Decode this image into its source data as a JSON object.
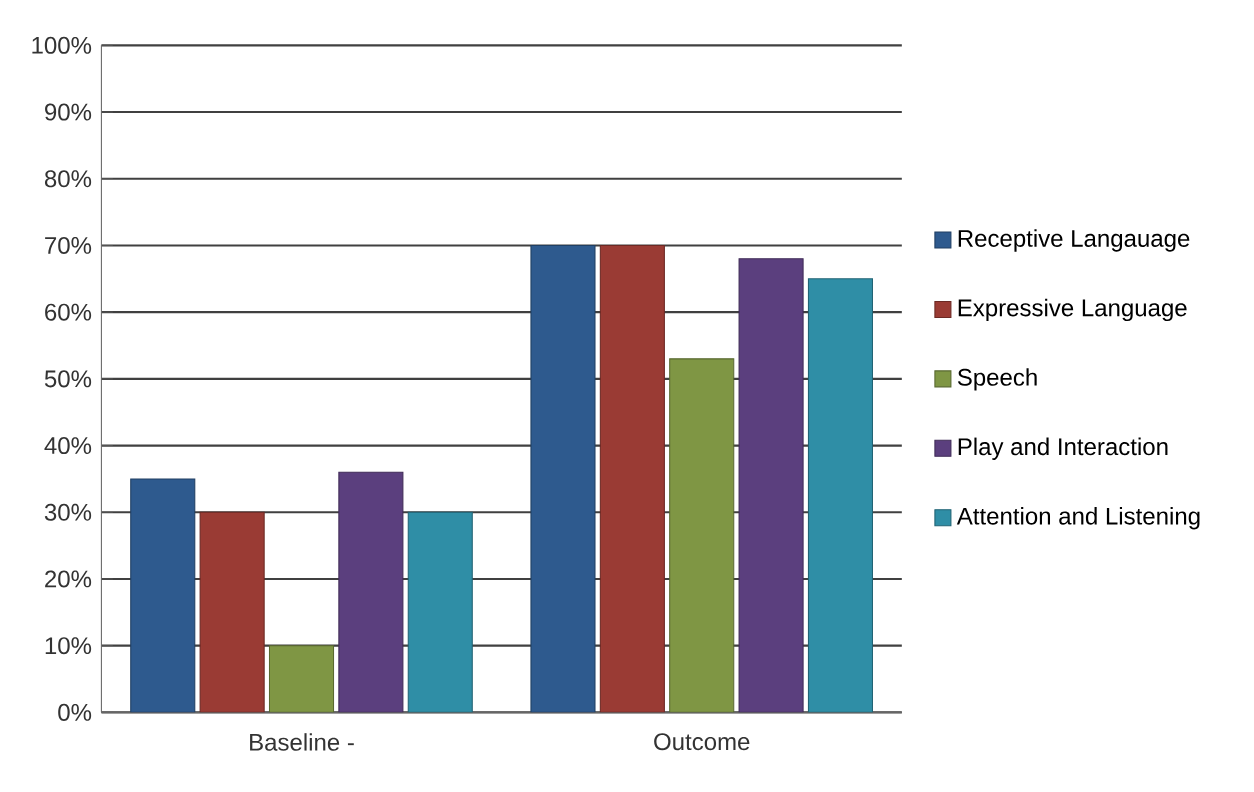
{
  "chart_data": {
    "type": "bar",
    "categories": [
      "Baseline -",
      "Outcome"
    ],
    "series": [
      {
        "name": "Receptive Langauage",
        "color": "#2e5a8e",
        "values": [
          35,
          70
        ]
      },
      {
        "name": "Expressive Language",
        "color": "#9a3b34",
        "values": [
          30,
          70
        ]
      },
      {
        "name": "Speech",
        "color": "#7f9644",
        "values": [
          10,
          53
        ]
      },
      {
        "name": "Play and Interaction",
        "color": "#5b3f7e",
        "values": [
          36,
          68
        ]
      },
      {
        "name": "Attention and Listening",
        "color": "#2f8ea6",
        "values": [
          30,
          65
        ]
      }
    ],
    "ylim": [
      0,
      100
    ],
    "yticks": [
      {
        "value": 0,
        "label": "0%"
      },
      {
        "value": 10,
        "label": "10%"
      },
      {
        "value": 20,
        "label": "20%"
      },
      {
        "value": 30,
        "label": "30%"
      },
      {
        "value": 40,
        "label": "40%"
      },
      {
        "value": 50,
        "label": "50%"
      },
      {
        "value": 60,
        "label": "60%"
      },
      {
        "value": 70,
        "label": "70%"
      },
      {
        "value": 80,
        "label": "80%"
      },
      {
        "value": 90,
        "label": "90%"
      },
      {
        "value": 100,
        "label": "100%"
      }
    ],
    "grid": "y",
    "legend": "right"
  }
}
